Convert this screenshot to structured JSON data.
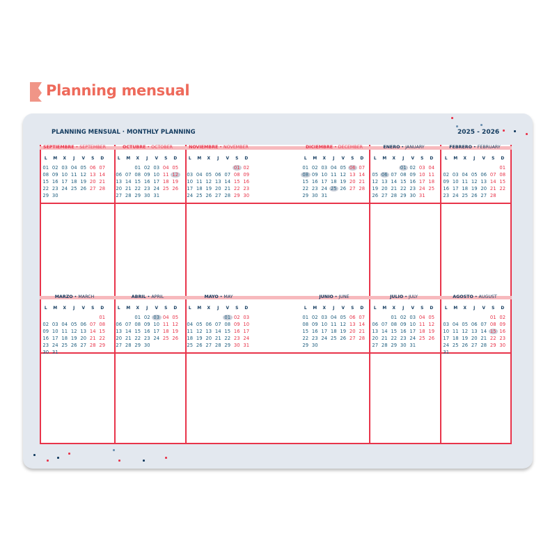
{
  "page_title": "Planning mensual",
  "planner": {
    "heading": "PLANNING MENSUAL · MONTHLY PLANNING",
    "years": "2025 - 2026"
  },
  "weekdays": [
    "L",
    "M",
    "X",
    "J",
    "V",
    "S",
    "D"
  ],
  "colors": {
    "accent": "#ee6a5b",
    "weekend": "#e8344a",
    "weekday": "#1f5e7e",
    "navy": "#123a5e",
    "panel": "#e3e8ef"
  },
  "months": [
    {
      "es": "SEPTIEMBRE",
      "en": "SEPTEMBER",
      "first_weekday": 1,
      "days": 30,
      "highlighted": [],
      "title_color": "#e8344a"
    },
    {
      "es": "OCTUBRE",
      "en": "OCTOBER",
      "first_weekday": 3,
      "days": 31,
      "highlighted": [
        12
      ],
      "title_color": "#e8344a"
    },
    {
      "es": "NOVIEMBRE",
      "en": "NOVEMBER",
      "first_weekday": 6,
      "days": 30,
      "highlighted": [
        1
      ],
      "title_color": "#e8344a"
    },
    {
      "es": "DICIEMBRE",
      "en": "DECEMBER",
      "first_weekday": 1,
      "days": 31,
      "highlighted": [
        6,
        8,
        25
      ],
      "title_color": "#e8344a"
    },
    {
      "es": "ENERO",
      "en": "JANUARY",
      "first_weekday": 4,
      "days": 31,
      "highlighted": [
        1,
        6
      ],
      "title_color": "#123a5e"
    },
    {
      "es": "FEBRERO",
      "en": "FEBRUARY",
      "first_weekday": 7,
      "days": 28,
      "highlighted": [],
      "title_color": "#123a5e"
    },
    {
      "es": "MARZO",
      "en": "MARCH",
      "first_weekday": 7,
      "days": 31,
      "highlighted": [],
      "title_color": "#123a5e"
    },
    {
      "es": "ABRIL",
      "en": "APRIL",
      "first_weekday": 3,
      "days": 30,
      "highlighted": [
        3
      ],
      "title_color": "#123a5e"
    },
    {
      "es": "MAYO",
      "en": "MAY",
      "first_weekday": 5,
      "days": 31,
      "highlighted": [
        1
      ],
      "title_color": "#123a5e"
    },
    {
      "es": "JUNIO",
      "en": "JUNE",
      "first_weekday": 1,
      "days": 30,
      "highlighted": [],
      "title_color": "#123a5e"
    },
    {
      "es": "JULIO",
      "en": "JULY",
      "first_weekday": 3,
      "days": 31,
      "highlighted": [],
      "title_color": "#123a5e"
    },
    {
      "es": "AGOSTO",
      "en": "AUGUST",
      "first_weekday": 6,
      "days": 31,
      "highlighted": [
        15
      ],
      "title_color": "#123a5e"
    }
  ]
}
